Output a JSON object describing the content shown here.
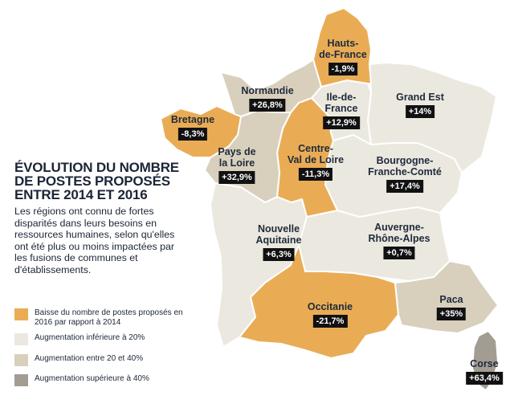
{
  "title_lines": [
    "ÉVOLUTION DU NOMBRE",
    "DE POSTES PROPOSÉS",
    "ENTRE 2014 ET 2016"
  ],
  "subtitle": "Les régions ont connu de fortes disparités dans leurs besoins en ressources humaines, selon qu'elles ont été plus ou moins impactées par les fusions de communes et d'établissements.",
  "legend": [
    {
      "category": "decrease",
      "color": "#e9ac55",
      "text": "Baisse du nombre de postes proposés en 2016 par rapport à 2014"
    },
    {
      "category": "low",
      "color": "#ebe8df",
      "text": "Augmentation inférieure à 20%"
    },
    {
      "category": "mid",
      "color": "#d8cfbd",
      "text": "Augmentation entre 20 et 40%"
    },
    {
      "category": "high",
      "color": "#a39c93",
      "text": "Augmentation supérieure à 40%"
    }
  ],
  "regions": [
    {
      "id": "hauts-de-france",
      "name_lines": [
        "Hauts-",
        "de-France"
      ],
      "value": "-1,9%",
      "category": "decrease"
    },
    {
      "id": "normandie",
      "name_lines": [
        "Normandie"
      ],
      "value": "+26,8%",
      "category": "mid"
    },
    {
      "id": "ile-de-france",
      "name_lines": [
        "Ile-de-",
        "France"
      ],
      "value": "+12,9%",
      "category": "low"
    },
    {
      "id": "grand-est",
      "name_lines": [
        "Grand Est"
      ],
      "value": "+14%",
      "category": "low"
    },
    {
      "id": "bretagne",
      "name_lines": [
        "Bretagne"
      ],
      "value": "-8,3%",
      "category": "decrease"
    },
    {
      "id": "pays-de-la-loire",
      "name_lines": [
        "Pays de",
        "la Loire"
      ],
      "value": "+32,9%",
      "category": "mid"
    },
    {
      "id": "centre-val-de-loire",
      "name_lines": [
        "Centre-",
        "Val de Loire"
      ],
      "value": "-11,3%",
      "category": "decrease"
    },
    {
      "id": "bourgogne-franche-comte",
      "name_lines": [
        "Bourgogne-",
        "Franche-Comté"
      ],
      "value": "+17,4%",
      "category": "low"
    },
    {
      "id": "nouvelle-aquitaine",
      "name_lines": [
        "Nouvelle",
        "Aquitaine"
      ],
      "value": "+6,3%",
      "category": "low"
    },
    {
      "id": "auvergne-rhone-alpes",
      "name_lines": [
        "Auvergne-",
        "Rhône-Alpes"
      ],
      "value": "+0,7%",
      "category": "low"
    },
    {
      "id": "occitanie",
      "name_lines": [
        "Occitanie"
      ],
      "value": "-21,7%",
      "category": "decrease"
    },
    {
      "id": "paca",
      "name_lines": [
        "Paca"
      ],
      "value": "+35%",
      "category": "mid"
    },
    {
      "id": "corse",
      "name_lines": [
        "Corse"
      ],
      "value": "+63,4%",
      "category": "high"
    }
  ]
}
